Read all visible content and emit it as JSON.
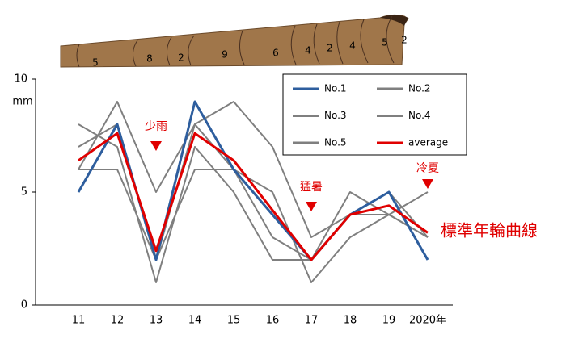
{
  "chart_data": {
    "type": "line",
    "ring_labels": [
      5,
      8,
      2,
      9,
      6,
      4,
      2,
      4,
      5,
      2
    ],
    "y_label": "mm",
    "categories": [
      "11",
      "12",
      "13",
      "14",
      "15",
      "16",
      "17",
      "18",
      "19",
      "2020年"
    ],
    "series": [
      {
        "name": "No.1",
        "color": "#2e5e9e",
        "values": [
          5,
          8,
          2,
          9,
          6,
          4,
          2,
          4,
          5,
          2
        ]
      },
      {
        "name": "No.2",
        "color": "#7f7f7f",
        "values": [
          6,
          9,
          5,
          8,
          9,
          7,
          3,
          4,
          5,
          3
        ]
      },
      {
        "name": "No.3",
        "color": "#7f7f7f",
        "values": [
          8,
          7,
          1,
          7,
          5,
          2,
          2,
          5,
          4,
          3
        ]
      },
      {
        "name": "No.4",
        "color": "#7f7f7f",
        "values": [
          7,
          8,
          2,
          6,
          6,
          5,
          1,
          3,
          4,
          5
        ]
      },
      {
        "name": "No.5",
        "color": "#7f7f7f",
        "values": [
          6,
          6,
          2,
          8,
          6,
          3,
          2,
          4,
          4,
          3
        ]
      },
      {
        "name": "average",
        "color": "#e00000",
        "values": [
          6.4,
          7.6,
          2.4,
          7.6,
          6.4,
          4.2,
          2,
          4,
          4.4,
          3.2
        ]
      }
    ],
    "ylim": [
      0,
      10
    ],
    "yticks": [
      0,
      5,
      10
    ],
    "annotations": [
      "少雨",
      "猛暑",
      "冷夏"
    ],
    "curve_label": "標準年輪曲線",
    "legend": "top-right"
  }
}
